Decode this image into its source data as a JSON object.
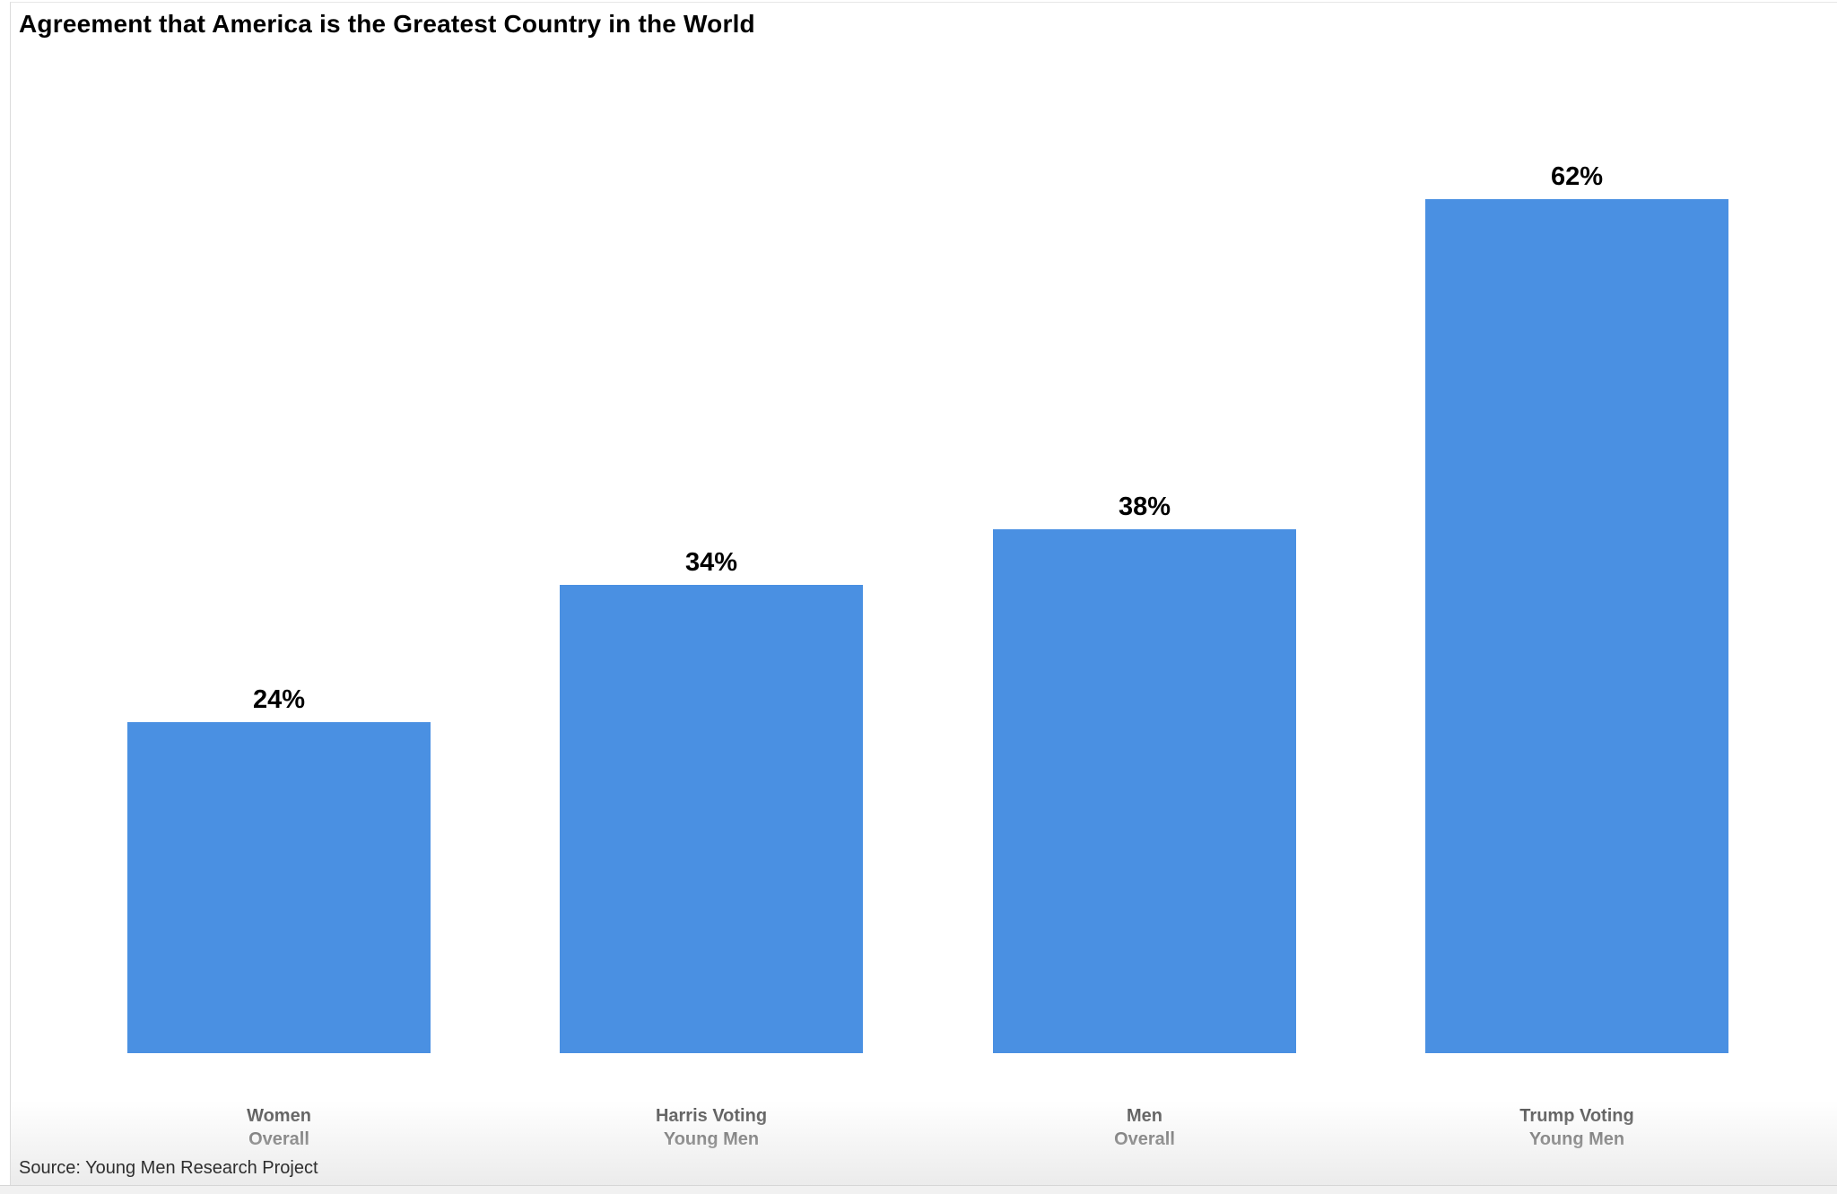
{
  "title": "Agreement that America is the Greatest Country in the World",
  "source": "Source: Young Men Research Project",
  "colors": {
    "bar": "#4A90E2",
    "title_text": "#000000",
    "category_text": "#4f4f4f",
    "source_text": "#2e2e2e"
  },
  "chart_data": {
    "type": "bar",
    "title": "Agreement that America is the Greatest Country in the World",
    "categories": [
      "Women\nOverall",
      "Harris Voting\nYoung Men",
      "Men\nOverall",
      "Trump Voting\nYoung Men"
    ],
    "values": [
      24,
      34,
      38,
      62
    ],
    "value_labels": [
      "24%",
      "34%",
      "38%",
      "62%"
    ],
    "xlabel": "",
    "ylabel": "",
    "ylim": [
      0,
      73
    ],
    "grid": false,
    "legend": false,
    "bar_color": "#4A90E2",
    "value_label_position": "above-bar",
    "source": "Source: Young Men Research Project"
  }
}
